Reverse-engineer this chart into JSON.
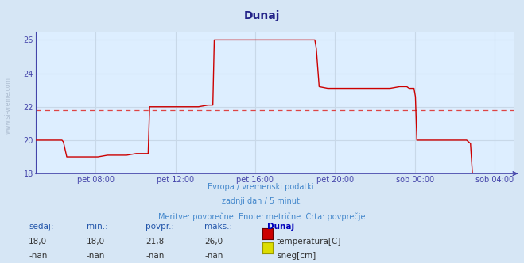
{
  "title": "Dunaj",
  "bg_color": "#d6e6f5",
  "plot_bg_color": "#ddeeff",
  "grid_color": "#c8d8e8",
  "avg_line_color": "#dd4444",
  "avg_line_value": 21.8,
  "ylim": [
    18,
    26.5
  ],
  "yticks": [
    18,
    20,
    22,
    24,
    26
  ],
  "ylabel_color": "#4444aa",
  "xlabel_color": "#4444aa",
  "line_color": "#cc0000",
  "line_width": 1.0,
  "watermark_text": "www.si-vreme.com",
  "subtitle1": "Evropa / vremenski podatki.",
  "subtitle2": "zadnji dan / 5 minut.",
  "subtitle3": "Meritve: povprečne  Enote: metrične  Črta: povprečje",
  "subtitle_color": "#4488cc",
  "legend_headers": [
    "sedaj:",
    "min.:",
    "povpr.:",
    "maks.:",
    "Dunaj"
  ],
  "legend_row1": [
    "18,0",
    "18,0",
    "21,8",
    "26,0"
  ],
  "legend_row2": [
    "-nan",
    "-nan",
    "-nan",
    "-nan"
  ],
  "legend_label1": "temperatura[C]",
  "legend_label2": "sneg[cm]",
  "legend_color1": "#cc0000",
  "legend_color2": "#dddd00",
  "legend_color2_border": "#999900",
  "x_tick_labels": [
    "pet 08:00",
    "pet 12:00",
    "pet 16:00",
    "pet 20:00",
    "sob 00:00",
    "sob 04:00"
  ],
  "x_tick_positions": [
    0.125,
    0.292,
    0.458,
    0.625,
    0.792,
    0.958
  ],
  "temp_data": [
    [
      0.0,
      20.0
    ],
    [
      0.02,
      20.0
    ],
    [
      0.04,
      20.0
    ],
    [
      0.055,
      20.0
    ],
    [
      0.058,
      19.9
    ],
    [
      0.065,
      19.0
    ],
    [
      0.09,
      19.0
    ],
    [
      0.11,
      19.0
    ],
    [
      0.13,
      19.0
    ],
    [
      0.15,
      19.1
    ],
    [
      0.17,
      19.1
    ],
    [
      0.19,
      19.1
    ],
    [
      0.21,
      19.2
    ],
    [
      0.23,
      19.2
    ],
    [
      0.235,
      19.2
    ],
    [
      0.238,
      22.0
    ],
    [
      0.25,
      22.0
    ],
    [
      0.26,
      22.0
    ],
    [
      0.28,
      22.0
    ],
    [
      0.3,
      22.0
    ],
    [
      0.32,
      22.0
    ],
    [
      0.34,
      22.0
    ],
    [
      0.36,
      22.1
    ],
    [
      0.37,
      22.1
    ],
    [
      0.373,
      26.0
    ],
    [
      0.38,
      26.0
    ],
    [
      0.4,
      26.0
    ],
    [
      0.42,
      26.0
    ],
    [
      0.44,
      26.0
    ],
    [
      0.46,
      26.0
    ],
    [
      0.5,
      26.0
    ],
    [
      0.55,
      26.0
    ],
    [
      0.583,
      26.0
    ],
    [
      0.586,
      25.5
    ],
    [
      0.592,
      23.2
    ],
    [
      0.61,
      23.1
    ],
    [
      0.62,
      23.1
    ],
    [
      0.64,
      23.1
    ],
    [
      0.66,
      23.1
    ],
    [
      0.68,
      23.1
    ],
    [
      0.7,
      23.1
    ],
    [
      0.72,
      23.1
    ],
    [
      0.74,
      23.1
    ],
    [
      0.76,
      23.2
    ],
    [
      0.77,
      23.2
    ],
    [
      0.775,
      23.2
    ],
    [
      0.78,
      23.1
    ],
    [
      0.79,
      23.1
    ],
    [
      0.793,
      22.6
    ],
    [
      0.796,
      20.0
    ],
    [
      0.8,
      20.0
    ],
    [
      0.82,
      20.0
    ],
    [
      0.84,
      20.0
    ],
    [
      0.86,
      20.0
    ],
    [
      0.88,
      20.0
    ],
    [
      0.9,
      20.0
    ],
    [
      0.908,
      19.8
    ],
    [
      0.912,
      18.0
    ],
    [
      0.92,
      18.0
    ],
    [
      0.93,
      18.0
    ],
    [
      0.95,
      18.0
    ],
    [
      0.97,
      18.0
    ],
    [
      0.99,
      18.0
    ],
    [
      1.0,
      18.0
    ]
  ]
}
